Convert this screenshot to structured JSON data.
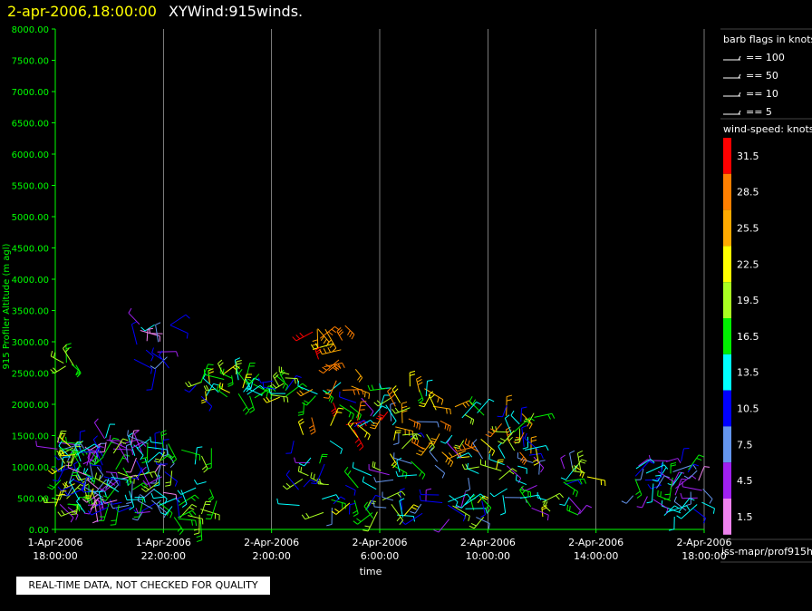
{
  "header": {
    "datetime": "2-apr-2006,18:00:00",
    "title": "XYWind:915winds."
  },
  "disclaimer": "REAL-TIME DATA, NOT CHECKED FOR QUALITY",
  "source": "iss-mapr/prof915h",
  "colors": {
    "axis": "#00ff00",
    "grid": "#ffffff",
    "header_date": "#ffff00"
  },
  "chart_data": {
    "type": "scatter",
    "ylabel": "915 Profiler Altitude (m agl)",
    "xlabel": "time",
    "ylim": [
      0,
      8000
    ],
    "yticks": [
      "0.00",
      "500.00",
      "1000.00",
      "1500.00",
      "2000.00",
      "2500.00",
      "3000.00",
      "3500.00",
      "4000.00",
      "4500.00",
      "5000.00",
      "5500.00",
      "6000.00",
      "6500.00",
      "7000.00",
      "7500.00",
      "8000.00"
    ],
    "xlim": [
      "2006-04-01T18:00",
      "2006-04-02T18:00"
    ],
    "xticks": [
      {
        "date": "1-Apr-2006",
        "time": "18:00:00"
      },
      {
        "date": "1-Apr-2006",
        "time": "22:00:00"
      },
      {
        "date": "2-Apr-2006",
        "time": "2:00:00"
      },
      {
        "date": "2-Apr-2006",
        "time": "6:00:00"
      },
      {
        "date": "2-Apr-2006",
        "time": "10:00:00"
      },
      {
        "date": "2-Apr-2006",
        "time": "14:00:00"
      },
      {
        "date": "2-Apr-2006",
        "time": "18:00:00"
      }
    ],
    "grid": "vertical",
    "legend_position": "right",
    "barb_legend": {
      "title": "barb flags in knots",
      "entries": [
        "== 100",
        "== 50",
        "== 10",
        "== 5"
      ]
    },
    "speed_legend": {
      "title": "wind-speed: knots",
      "levels": [
        {
          "label": "31.5",
          "color": "#ff0000"
        },
        {
          "label": "28.5",
          "color": "#ff7f00"
        },
        {
          "label": "25.5",
          "color": "#ffaa00"
        },
        {
          "label": "22.5",
          "color": "#ffff00"
        },
        {
          "label": "19.5",
          "color": "#aaff22"
        },
        {
          "label": "16.5",
          "color": "#00ee00"
        },
        {
          "label": "13.5",
          "color": "#00ffff"
        },
        {
          "label": "10.5",
          "color": "#0000ff"
        },
        {
          "label": "7.5",
          "color": "#6495ed"
        },
        {
          "label": "4.5",
          "color": "#a020f0"
        },
        {
          "label": "1.5",
          "color": "#ee82ee"
        }
      ]
    },
    "wind_clusters": [
      {
        "t": [
          0.0,
          1.8
        ],
        "alt": [
          250,
          1400
        ],
        "spd": [
          1.5,
          22.5
        ],
        "n": 90
      },
      {
        "t": [
          1.8,
          4.2
        ],
        "alt": [
          250,
          1500
        ],
        "spd": [
          1.5,
          19.5
        ],
        "n": 80
      },
      {
        "t": [
          0.3,
          0.8
        ],
        "alt": [
          2600,
          2700
        ],
        "spd": [
          16.5,
          19.5
        ],
        "n": 6
      },
      {
        "t": [
          2.8,
          4.3
        ],
        "alt": [
          2500,
          3300
        ],
        "spd": [
          1.5,
          16.5
        ],
        "n": 16
      },
      {
        "t": [
          5.2,
          8.8
        ],
        "alt": [
          2100,
          2500
        ],
        "spd": [
          10.5,
          22.5
        ],
        "n": 45
      },
      {
        "t": [
          4.3,
          6.0
        ],
        "alt": [
          150,
          1400
        ],
        "spd": [
          10.5,
          19.5
        ],
        "n": 22
      },
      {
        "t": [
          8.8,
          14.0
        ],
        "alt": [
          1400,
          2400
        ],
        "spd": [
          4.5,
          31.5
        ],
        "n": 50
      },
      {
        "t": [
          9.5,
          11.2
        ],
        "alt": [
          2500,
          3300
        ],
        "spd": [
          22.5,
          31.5
        ],
        "n": 14
      },
      {
        "t": [
          9.0,
          19.5
        ],
        "alt": [
          150,
          1200
        ],
        "spd": [
          4.5,
          22.5
        ],
        "n": 110
      },
      {
        "t": [
          12.0,
          18.0
        ],
        "alt": [
          1200,
          2000
        ],
        "spd": [
          10.5,
          28.5
        ],
        "n": 40
      },
      {
        "t": [
          21.2,
          24.0
        ],
        "alt": [
          200,
          1100
        ],
        "spd": [
          1.5,
          16.5
        ],
        "n": 45
      },
      {
        "t": [
          16.5,
          17.2
        ],
        "alt": [
          1500,
          1700
        ],
        "spd": [
          10.5,
          31.5
        ],
        "n": 6
      },
      {
        "t": [
          19.5,
          19.7
        ],
        "alt": [
          800,
          1000
        ],
        "spd": [
          19.5,
          22.5
        ],
        "n": 2
      }
    ]
  }
}
